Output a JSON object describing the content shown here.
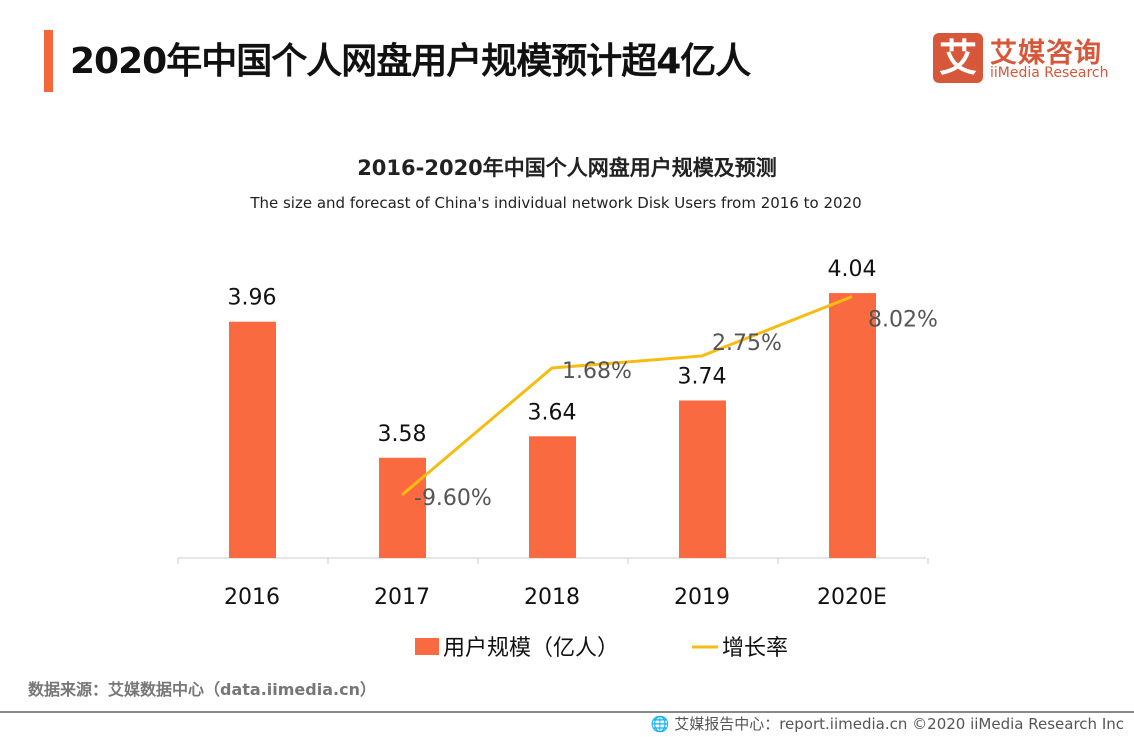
{
  "header": {
    "title": "2020年中国个人网盘用户规模预计超4亿人"
  },
  "logo": {
    "mark": "艾",
    "cn": "艾媒咨询",
    "en": "iiMedia Research"
  },
  "chart_data": {
    "type": "bar+line",
    "title": "2016-2020年中国个人网盘用户规模及预测",
    "subtitle": "The size and forecast of China's individual network Disk Users from 2016 to 2020",
    "categories": [
      "2016",
      "2017",
      "2018",
      "2019",
      "2020E"
    ],
    "series": [
      {
        "name": "用户规模（亿人）",
        "type": "bar",
        "color": "#fa6a41",
        "values": [
          3.96,
          3.58,
          3.64,
          3.74,
          4.04
        ],
        "labels": [
          "3.96",
          "3.58",
          "3.64",
          "3.74",
          "4.04"
        ]
      },
      {
        "name": "增长率",
        "type": "line",
        "color": "#f7bc13",
        "values": [
          null,
          -9.6,
          1.68,
          2.75,
          8.02
        ],
        "labels": [
          "",
          "-9.60%",
          "1.68%",
          "2.75%",
          "8.02%"
        ]
      }
    ],
    "legend": "bottom",
    "grid": false
  },
  "footer": {
    "source": "数据来源：艾媒数据中心（data.iimedia.cn）",
    "report": "艾媒报告中心：report.iimedia.cn   ©2020  iiMedia Research  Inc"
  }
}
